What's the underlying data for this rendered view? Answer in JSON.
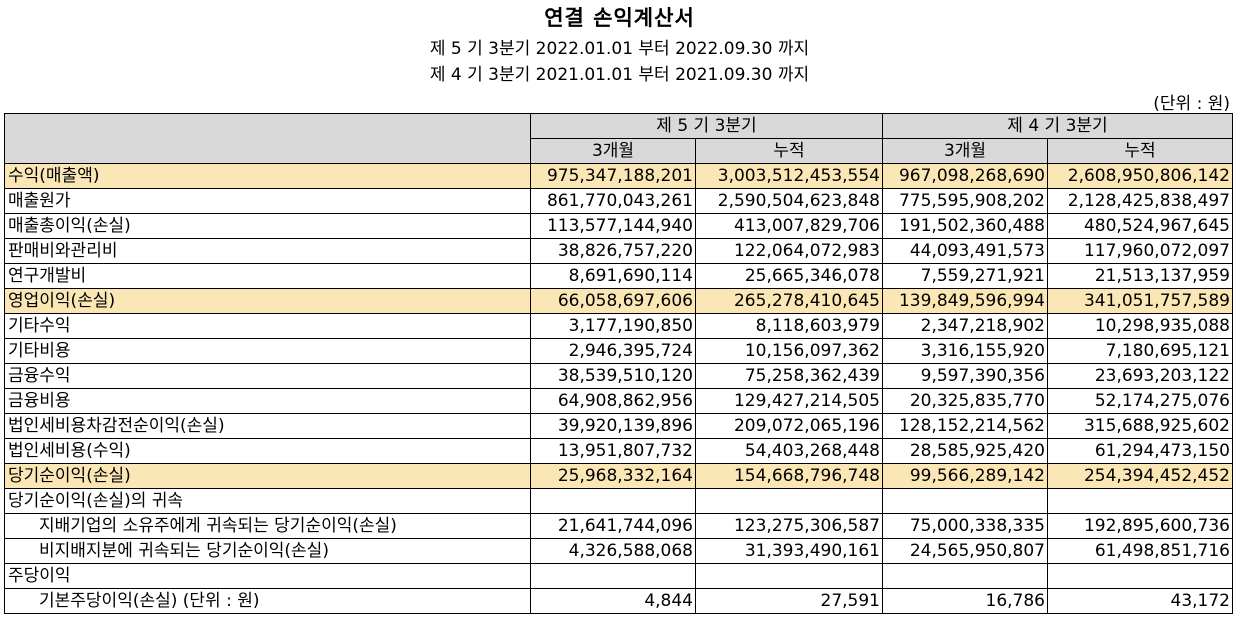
{
  "title": "연결 손익계산서",
  "period_lines": [
    "제 5 기 3분기 2022.01.01 부터 2022.09.30 까지",
    "제 4 기 3분기 2021.01.01 부터 2021.09.30 까지"
  ],
  "unit_note": "(단위 : 원)",
  "header": {
    "groups": [
      "제 5 기 3분기",
      "제 4 기 3분기"
    ],
    "subcols": [
      "3개월",
      "누적",
      "3개월",
      "누적"
    ]
  },
  "highlight_color": "#fbe7b5",
  "header_color": "#d9d9d9",
  "rows": [
    {
      "label": "수익(매출액)",
      "highlight": true,
      "indent": false,
      "values": [
        "975,347,188,201",
        "3,003,512,453,554",
        "967,098,268,690",
        "2,608,950,806,142"
      ]
    },
    {
      "label": "매출원가",
      "highlight": false,
      "indent": false,
      "values": [
        "861,770,043,261",
        "2,590,504,623,848",
        "775,595,908,202",
        "2,128,425,838,497"
      ]
    },
    {
      "label": "매출총이익(손실)",
      "highlight": false,
      "indent": false,
      "values": [
        "113,577,144,940",
        "413,007,829,706",
        "191,502,360,488",
        "480,524,967,645"
      ]
    },
    {
      "label": "판매비와관리비",
      "highlight": false,
      "indent": false,
      "values": [
        "38,826,757,220",
        "122,064,072,983",
        "44,093,491,573",
        "117,960,072,097"
      ]
    },
    {
      "label": "연구개발비",
      "highlight": false,
      "indent": false,
      "values": [
        "8,691,690,114",
        "25,665,346,078",
        "7,559,271,921",
        "21,513,137,959"
      ]
    },
    {
      "label": "영업이익(손실)",
      "highlight": true,
      "indent": false,
      "values": [
        "66,058,697,606",
        "265,278,410,645",
        "139,849,596,994",
        "341,051,757,589"
      ]
    },
    {
      "label": "기타수익",
      "highlight": false,
      "indent": false,
      "values": [
        "3,177,190,850",
        "8,118,603,979",
        "2,347,218,902",
        "10,298,935,088"
      ]
    },
    {
      "label": "기타비용",
      "highlight": false,
      "indent": false,
      "values": [
        "2,946,395,724",
        "10,156,097,362",
        "3,316,155,920",
        "7,180,695,121"
      ]
    },
    {
      "label": "금융수익",
      "highlight": false,
      "indent": false,
      "values": [
        "38,539,510,120",
        "75,258,362,439",
        "9,597,390,356",
        "23,693,203,122"
      ]
    },
    {
      "label": "금융비용",
      "highlight": false,
      "indent": false,
      "values": [
        "64,908,862,956",
        "129,427,214,505",
        "20,325,835,770",
        "52,174,275,076"
      ]
    },
    {
      "label": "법인세비용차감전순이익(손실)",
      "highlight": false,
      "indent": false,
      "values": [
        "39,920,139,896",
        "209,072,065,196",
        "128,152,214,562",
        "315,688,925,602"
      ]
    },
    {
      "label": "법인세비용(수익)",
      "highlight": false,
      "indent": false,
      "values": [
        "13,951,807,732",
        "54,403,268,448",
        "28,585,925,420",
        "61,294,473,150"
      ]
    },
    {
      "label": "당기순이익(손실)",
      "highlight": true,
      "indent": false,
      "values": [
        "25,968,332,164",
        "154,668,796,748",
        "99,566,289,142",
        "254,394,452,452"
      ]
    },
    {
      "label": "당기순이익(손실)의 귀속",
      "highlight": false,
      "indent": false,
      "values": [
        "",
        "",
        "",
        ""
      ]
    },
    {
      "label": "지배기업의 소유주에게 귀속되는 당기순이익(손실)",
      "highlight": false,
      "indent": true,
      "values": [
        "21,641,744,096",
        "123,275,306,587",
        "75,000,338,335",
        "192,895,600,736"
      ]
    },
    {
      "label": "비지배지분에 귀속되는 당기순이익(손실)",
      "highlight": false,
      "indent": true,
      "values": [
        "4,326,588,068",
        "31,393,490,161",
        "24,565,950,807",
        "61,498,851,716"
      ]
    },
    {
      "label": "주당이익",
      "highlight": false,
      "indent": false,
      "values": [
        "",
        "",
        "",
        ""
      ]
    },
    {
      "label": "기본주당이익(손실) (단위 : 원)",
      "highlight": false,
      "indent": true,
      "values": [
        "4,844",
        "27,591",
        "16,786",
        "43,172"
      ]
    }
  ]
}
